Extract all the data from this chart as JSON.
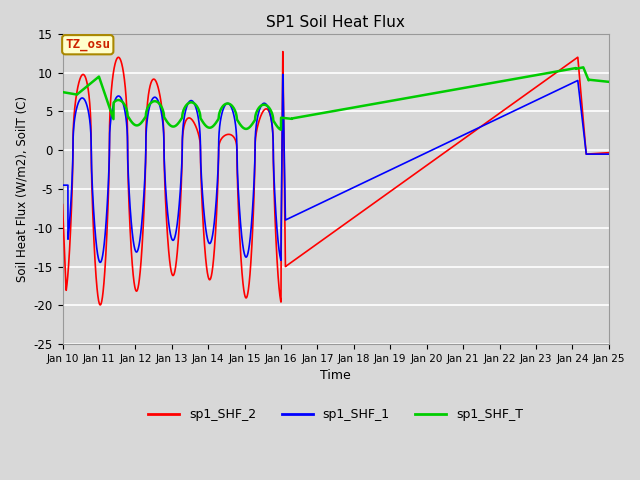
{
  "title": "SP1 Soil Heat Flux",
  "xlabel": "Time",
  "ylabel": "Soil Heat Flux (W/m2), SoilT (C)",
  "ylim": [
    -25,
    15
  ],
  "xlim": [
    0,
    15
  ],
  "bg_color": "#d8d8d8",
  "plot_bg_color": "#d8d8d8",
  "grid_color": "#ffffff",
  "tz_label": "TZ_osu",
  "tz_bg": "#ffffcc",
  "tz_border": "#aa8800",
  "tz_text_color": "#cc2200",
  "colors": {
    "sp1_SHF_2": "#ff0000",
    "sp1_SHF_1": "#0000ff",
    "sp1_SHF_T": "#00cc00"
  },
  "x_ticks": [
    0,
    1,
    2,
    3,
    4,
    5,
    6,
    7,
    8,
    9,
    10,
    11,
    12,
    13,
    14,
    15
  ],
  "x_tick_labels": [
    "Jan 10",
    "Jan 11",
    "Jan 12",
    "Jan 13",
    "Jan 14",
    "Jan 15",
    "Jan 16",
    "Jan 17",
    "Jan 18",
    "Jan 19",
    "Jan 20",
    "Jan 21",
    "Jan 22",
    "Jan 23",
    "Jan 24",
    "Jan 25"
  ],
  "y_ticks": [
    -25,
    -20,
    -15,
    -10,
    -5,
    0,
    5,
    10,
    15
  ],
  "legend_labels": [
    "sp1_SHF_2",
    "sp1_SHF_1",
    "sp1_SHF_T"
  ]
}
